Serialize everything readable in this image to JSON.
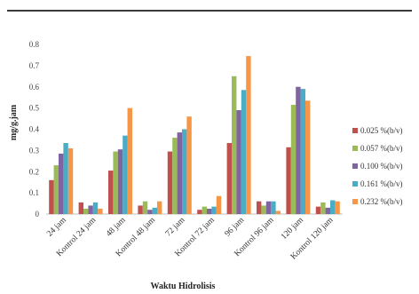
{
  "chart_data": {
    "type": "bar",
    "xlabel": "Waktu Hidrolisis",
    "ylabel": "mg/g.jam",
    "ylim": [
      0,
      0.8
    ],
    "yticks": [
      "0",
      "0.1",
      "0.2",
      "0.3",
      "0.4",
      "0.5",
      "0.6",
      "0.7",
      "0.8"
    ],
    "grid": false,
    "legend_position": "right",
    "categories": [
      "24 jam",
      "Kontrol 24 jam",
      "48 jam",
      "Kontrol 48 jam",
      "72 jam",
      "Kontrol 72 jam",
      "96 jam",
      "Kontrol 96 jam",
      "120 jam",
      "Kontrol 120 jam"
    ],
    "series": [
      {
        "name": "0.025 %(b/v)",
        "color": "#c0504d",
        "values": [
          0.16,
          0.055,
          0.205,
          0.04,
          0.295,
          0.02,
          0.335,
          0.06,
          0.315,
          0.035
        ]
      },
      {
        "name": "0.057 %(b/v)",
        "color": "#9bbb59",
        "values": [
          0.23,
          0.025,
          0.295,
          0.06,
          0.36,
          0.035,
          0.65,
          0.04,
          0.515,
          0.055
        ]
      },
      {
        "name": "0.100 %(b/v)",
        "color": "#8064a2",
        "values": [
          0.285,
          0.04,
          0.305,
          0.02,
          0.385,
          0.025,
          0.49,
          0.06,
          0.6,
          0.03
        ]
      },
      {
        "name": "0.161 %(b/v)",
        "color": "#4bacc6",
        "values": [
          0.335,
          0.055,
          0.37,
          0.03,
          0.4,
          0.035,
          0.585,
          0.06,
          0.59,
          0.065
        ]
      },
      {
        "name": "0.232 %(b/v)",
        "color": "#f79646",
        "values": [
          0.31,
          0.025,
          0.5,
          0.06,
          0.46,
          0.085,
          0.745,
          0.015,
          0.535,
          0.06
        ]
      }
    ]
  }
}
